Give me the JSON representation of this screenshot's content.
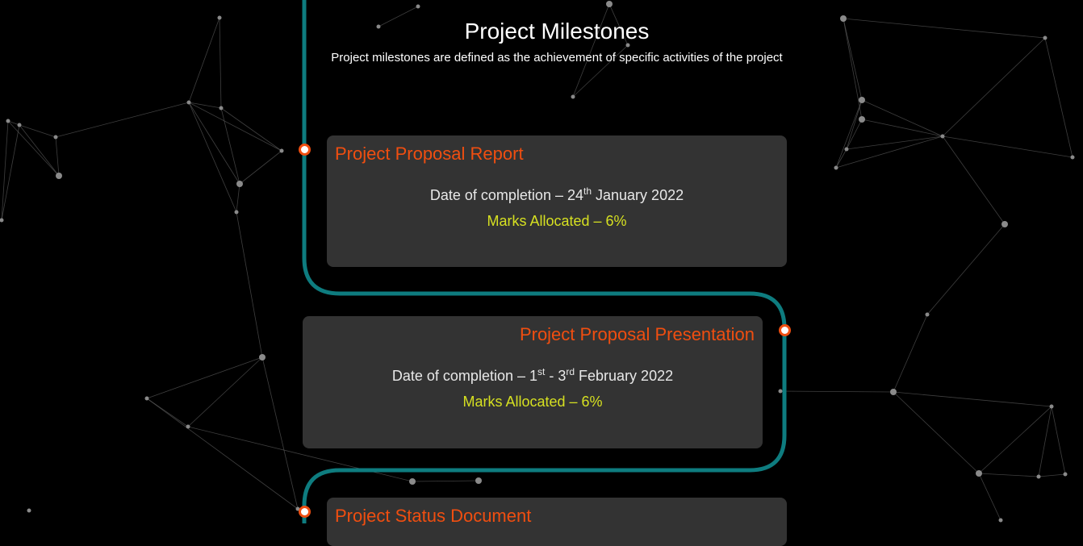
{
  "page": {
    "title": "Project Milestones",
    "subtitle": "Project milestones are defined as the achievement of specific activities of the project"
  },
  "milestones": [
    {
      "title": "Project Proposal Report",
      "date_prefix": "Date of completion – 24",
      "date_sup1": "th",
      "date_mid": "",
      "date_sup2": "",
      "date_suffix": " January 2022",
      "marks": "Marks Allocated – 6%"
    },
    {
      "title": "Project Proposal Presentation",
      "date_prefix": "Date of completion – 1",
      "date_sup1": "st",
      "date_mid": " - 3",
      "date_sup2": "rd",
      "date_suffix": " February 2022",
      "marks": "Marks Allocated – 6%"
    },
    {
      "title": "Project Status Document"
    }
  ],
  "colors": {
    "background": "#000000",
    "card_background": "#333333",
    "title_accent": "#f04e10",
    "marks_text": "#d6e021",
    "timeline_line": "#0e7c7f",
    "network_lines": "#5a5a5a"
  }
}
